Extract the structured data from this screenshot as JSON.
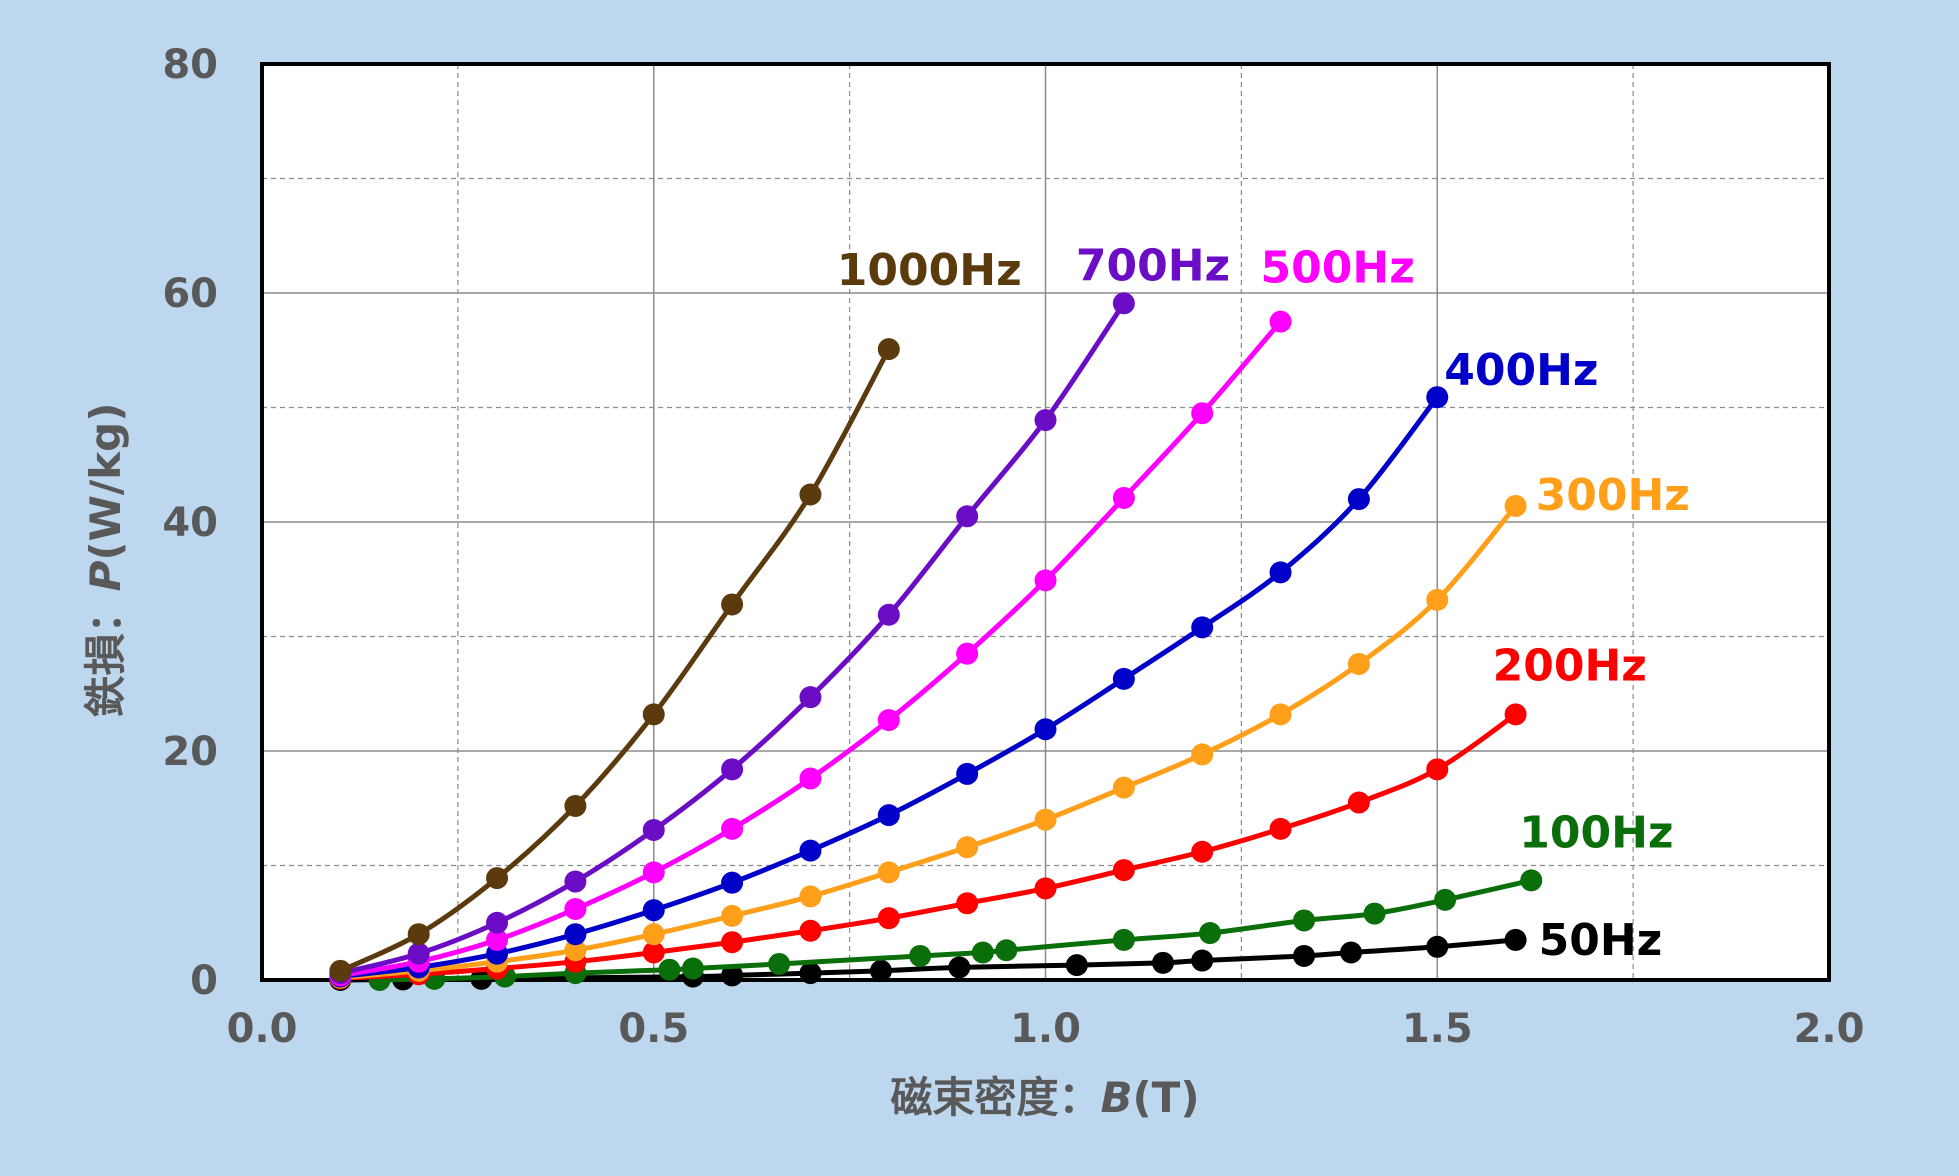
{
  "chart_data": {
    "type": "line",
    "xlabel": {
      "prefix": "磁束密度：",
      "var": "B",
      "unit": "(T)"
    },
    "ylabel": {
      "prefix": "鉄損：",
      "var": "P",
      "unit": "(W/kg)"
    },
    "xlim": [
      0,
      2.0
    ],
    "ylim": [
      0,
      80
    ],
    "x_ticks": [
      "0.0",
      "0.5",
      "1.0",
      "1.5",
      "2.0"
    ],
    "y_ticks": [
      "0",
      "20",
      "40",
      "60",
      "80"
    ],
    "grid": {
      "major": true,
      "minor_dashed": true
    },
    "series": [
      {
        "name": "1000Hz",
        "color": "#5B3A0E",
        "points": [
          [
            0.1,
            0.8
          ],
          [
            0.2,
            4.0
          ],
          [
            0.3,
            8.9
          ],
          [
            0.4,
            15.2
          ],
          [
            0.5,
            23.2
          ],
          [
            0.6,
            32.8
          ],
          [
            0.7,
            42.4
          ],
          [
            0.8,
            55.1
          ]
        ]
      },
      {
        "name": "700Hz",
        "color": "#6A0DC4",
        "points": [
          [
            0.1,
            0.6
          ],
          [
            0.2,
            2.3
          ],
          [
            0.3,
            5.0
          ],
          [
            0.4,
            8.6
          ],
          [
            0.5,
            13.1
          ],
          [
            0.6,
            18.4
          ],
          [
            0.7,
            24.7
          ],
          [
            0.8,
            31.9
          ],
          [
            0.9,
            40.5
          ],
          [
            1.0,
            48.9
          ],
          [
            1.1,
            59.1
          ]
        ]
      },
      {
        "name": "500Hz",
        "color": "#FF00FF",
        "points": [
          [
            0.1,
            0.4
          ],
          [
            0.2,
            1.6
          ],
          [
            0.3,
            3.5
          ],
          [
            0.4,
            6.2
          ],
          [
            0.5,
            9.4
          ],
          [
            0.6,
            13.2
          ],
          [
            0.7,
            17.6
          ],
          [
            0.8,
            22.7
          ],
          [
            0.9,
            28.5
          ],
          [
            1.0,
            34.9
          ],
          [
            1.1,
            42.1
          ],
          [
            1.2,
            49.5
          ],
          [
            1.3,
            57.5
          ]
        ]
      },
      {
        "name": "400Hz",
        "color": "#0000C8",
        "points": [
          [
            0.1,
            0.3
          ],
          [
            0.2,
            1.1
          ],
          [
            0.3,
            2.3
          ],
          [
            0.4,
            4.0
          ],
          [
            0.5,
            6.1
          ],
          [
            0.6,
            8.5
          ],
          [
            0.7,
            11.3
          ],
          [
            0.8,
            14.4
          ],
          [
            0.9,
            18.0
          ],
          [
            1.0,
            21.9
          ],
          [
            1.1,
            26.3
          ],
          [
            1.2,
            30.8
          ],
          [
            1.3,
            35.6
          ],
          [
            1.4,
            42.0
          ],
          [
            1.5,
            50.9
          ]
        ]
      },
      {
        "name": "300Hz",
        "color": "#FF9F1A",
        "points": [
          [
            0.1,
            0.2
          ],
          [
            0.2,
            0.8
          ],
          [
            0.3,
            1.6
          ],
          [
            0.4,
            2.6
          ],
          [
            0.5,
            4.0
          ],
          [
            0.6,
            5.6
          ],
          [
            0.7,
            7.3
          ],
          [
            0.8,
            9.4
          ],
          [
            0.9,
            11.6
          ],
          [
            1.0,
            14.0
          ],
          [
            1.1,
            16.8
          ],
          [
            1.2,
            19.7
          ],
          [
            1.3,
            23.2
          ],
          [
            1.4,
            27.6
          ],
          [
            1.5,
            33.2
          ],
          [
            1.6,
            41.4
          ]
        ]
      },
      {
        "name": "200Hz",
        "color": "#FF0000",
        "points": [
          [
            0.1,
            0.15
          ],
          [
            0.2,
            0.5
          ],
          [
            0.3,
            1.0
          ],
          [
            0.4,
            1.6
          ],
          [
            0.5,
            2.4
          ],
          [
            0.6,
            3.3
          ],
          [
            0.7,
            4.3
          ],
          [
            0.8,
            5.4
          ],
          [
            0.9,
            6.7
          ],
          [
            1.0,
            8.0
          ],
          [
            1.1,
            9.6
          ],
          [
            1.2,
            11.2
          ],
          [
            1.3,
            13.2
          ],
          [
            1.4,
            15.5
          ],
          [
            1.5,
            18.4
          ],
          [
            1.6,
            23.2
          ]
        ]
      },
      {
        "name": "100Hz",
        "color": "#0A6E0A",
        "points": [
          [
            0.15,
            0.0
          ],
          [
            0.22,
            0.1
          ],
          [
            0.31,
            0.3
          ],
          [
            0.4,
            0.6
          ],
          [
            0.52,
            0.9
          ],
          [
            0.55,
            1.0
          ],
          [
            0.66,
            1.4
          ],
          [
            0.84,
            2.1
          ],
          [
            0.92,
            2.4
          ],
          [
            0.95,
            2.6
          ],
          [
            1.1,
            3.5
          ],
          [
            1.21,
            4.1
          ],
          [
            1.33,
            5.2
          ],
          [
            1.42,
            5.8
          ],
          [
            1.51,
            7.0
          ],
          [
            1.62,
            8.7
          ]
        ]
      },
      {
        "name": "50Hz",
        "color": "#000000",
        "points": [
          [
            0.1,
            0.0
          ],
          [
            0.18,
            0.05
          ],
          [
            0.28,
            0.1
          ],
          [
            0.55,
            0.3
          ],
          [
            0.6,
            0.4
          ],
          [
            0.7,
            0.6
          ],
          [
            0.79,
            0.8
          ],
          [
            0.89,
            1.1
          ],
          [
            1.04,
            1.3
          ],
          [
            1.15,
            1.5
          ],
          [
            1.2,
            1.7
          ],
          [
            1.33,
            2.1
          ],
          [
            1.39,
            2.4
          ],
          [
            1.5,
            2.9
          ],
          [
            1.6,
            3.5
          ]
        ]
      }
    ]
  }
}
